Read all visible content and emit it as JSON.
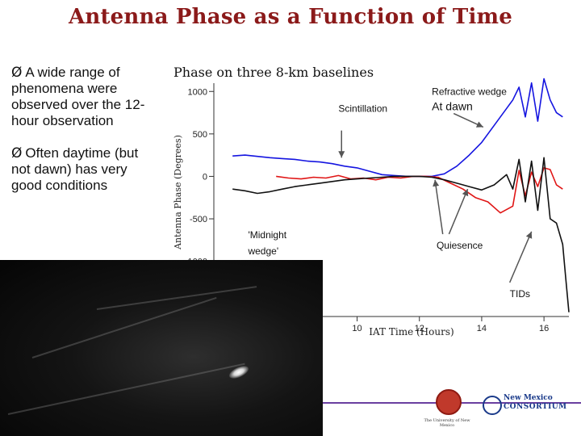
{
  "slide": {
    "title": "Antenna Phase as a Function of Time",
    "bullets": [
      {
        "marker": "Ø",
        "text": "A wide range of phenomena were observed over the 12-hour observation"
      },
      {
        "marker": "Ø",
        "text": "Often daytime (but not dawn) has very good conditions"
      }
    ]
  },
  "logos": {
    "unm": "The University of New Mexico",
    "nmc_line1": "New Mexico",
    "nmc_line2": "CONSORTIUM"
  },
  "colors": {
    "title": "#8b1a1a",
    "blue": "#1515e0",
    "red": "#e01515",
    "black": "#111111"
  },
  "chart_data": {
    "type": "line",
    "title": "Phase on three 8-km baselines",
    "xlabel": "IAT Time (Hours)",
    "ylabel": "Antenna Phase (Degrees)",
    "xlim": [
      5.4,
      16.8
    ],
    "ylim": [
      -1650,
      1050
    ],
    "x_ticks": [
      {
        "v": 10,
        "label": "10"
      },
      {
        "v": 12,
        "label": "12"
      },
      {
        "v": 14,
        "label": "14"
      },
      {
        "v": 16,
        "label": "16"
      }
    ],
    "y_ticks": [
      {
        "v": 1000,
        "label": "1000"
      },
      {
        "v": 500,
        "label": "500"
      },
      {
        "v": 0,
        "label": "0"
      },
      {
        "v": -500,
        "label": "-500"
      },
      {
        "v": -1000,
        "label": "-1000"
      }
    ],
    "series": [
      {
        "name": "blue",
        "color": "#1515e0",
        "x": [
          6.0,
          6.4,
          6.8,
          7.2,
          7.6,
          8.0,
          8.4,
          8.8,
          9.2,
          9.6,
          10.0,
          10.4,
          10.8,
          11.2,
          11.6,
          12.0,
          12.4,
          12.8,
          13.2,
          13.6,
          14.0,
          14.4,
          14.8,
          15.0,
          15.2,
          15.4,
          15.6,
          15.8,
          16.0,
          16.2,
          16.4,
          16.6
        ],
        "y": [
          240,
          250,
          235,
          220,
          210,
          200,
          180,
          170,
          150,
          120,
          100,
          60,
          20,
          10,
          0,
          0,
          0,
          30,
          120,
          250,
          400,
          600,
          800,
          900,
          1050,
          700,
          1100,
          650,
          1150,
          900,
          750,
          700
        ]
      },
      {
        "name": "red",
        "color": "#e01515",
        "x": [
          7.4,
          7.8,
          8.2,
          8.6,
          9.0,
          9.4,
          9.8,
          10.2,
          10.6,
          11.0,
          11.4,
          11.8,
          12.2,
          12.6,
          13.0,
          13.4,
          13.8,
          14.2,
          14.6,
          15.0,
          15.2,
          15.4,
          15.6,
          15.8,
          16.0,
          16.2,
          16.4,
          16.6
        ],
        "y": [
          0,
          -20,
          -30,
          -10,
          -20,
          10,
          -30,
          -20,
          -40,
          -10,
          -20,
          0,
          0,
          -10,
          -80,
          -150,
          -250,
          -300,
          -430,
          -350,
          70,
          -230,
          50,
          -120,
          100,
          80,
          -100,
          -150
        ]
      },
      {
        "name": "black",
        "color": "#111111",
        "x": [
          6.0,
          6.4,
          6.8,
          7.2,
          7.6,
          8.0,
          8.4,
          8.8,
          9.2,
          9.6,
          10.0,
          10.4,
          10.8,
          11.2,
          11.6,
          12.0,
          12.4,
          12.8,
          13.2,
          13.6,
          14.0,
          14.4,
          14.8,
          15.0,
          15.2,
          15.4,
          15.6,
          15.8,
          16.0,
          16.2,
          16.4,
          16.6,
          16.7,
          16.8
        ],
        "y": [
          -150,
          -170,
          -200,
          -180,
          -150,
          -120,
          -100,
          -80,
          -60,
          -40,
          -30,
          -20,
          -10,
          0,
          0,
          0,
          -10,
          -40,
          -80,
          -120,
          -160,
          -100,
          20,
          -150,
          200,
          -300,
          180,
          -400,
          220,
          -500,
          -550,
          -800,
          -1200,
          -1600
        ]
      }
    ],
    "annotations": [
      {
        "text": "Scintillation",
        "x": 9.4,
        "y": 760
      },
      {
        "text": "Refractive wedge",
        "x": 12.4,
        "y": 960
      },
      {
        "text": "At dawn",
        "x": 12.4,
        "y": 780
      },
      {
        "text": "'Midnight",
        "x": 6.5,
        "y": -730
      },
      {
        "text": "wedge'",
        "x": 6.5,
        "y": -920
      },
      {
        "text": "Quiesence",
        "x": 12.55,
        "y": -850
      },
      {
        "text": "TIDs",
        "x": 14.9,
        "y": -1420
      }
    ],
    "arrows": [
      {
        "name": "scintillation-arrow",
        "from": [
          9.5,
          540
        ],
        "to": [
          9.5,
          220
        ]
      },
      {
        "name": "dawn-arrow",
        "from": [
          13.1,
          740
        ],
        "to": [
          14.05,
          580
        ]
      },
      {
        "name": "quiesence-arrow-1",
        "from": [
          12.75,
          -680
        ],
        "to": [
          12.5,
          -40
        ]
      },
      {
        "name": "quiesence-arrow-2",
        "from": [
          12.95,
          -680
        ],
        "to": [
          13.55,
          -150
        ]
      },
      {
        "name": "tids-arrow",
        "from": [
          14.9,
          -1250
        ],
        "to": [
          15.6,
          -650
        ]
      }
    ]
  }
}
